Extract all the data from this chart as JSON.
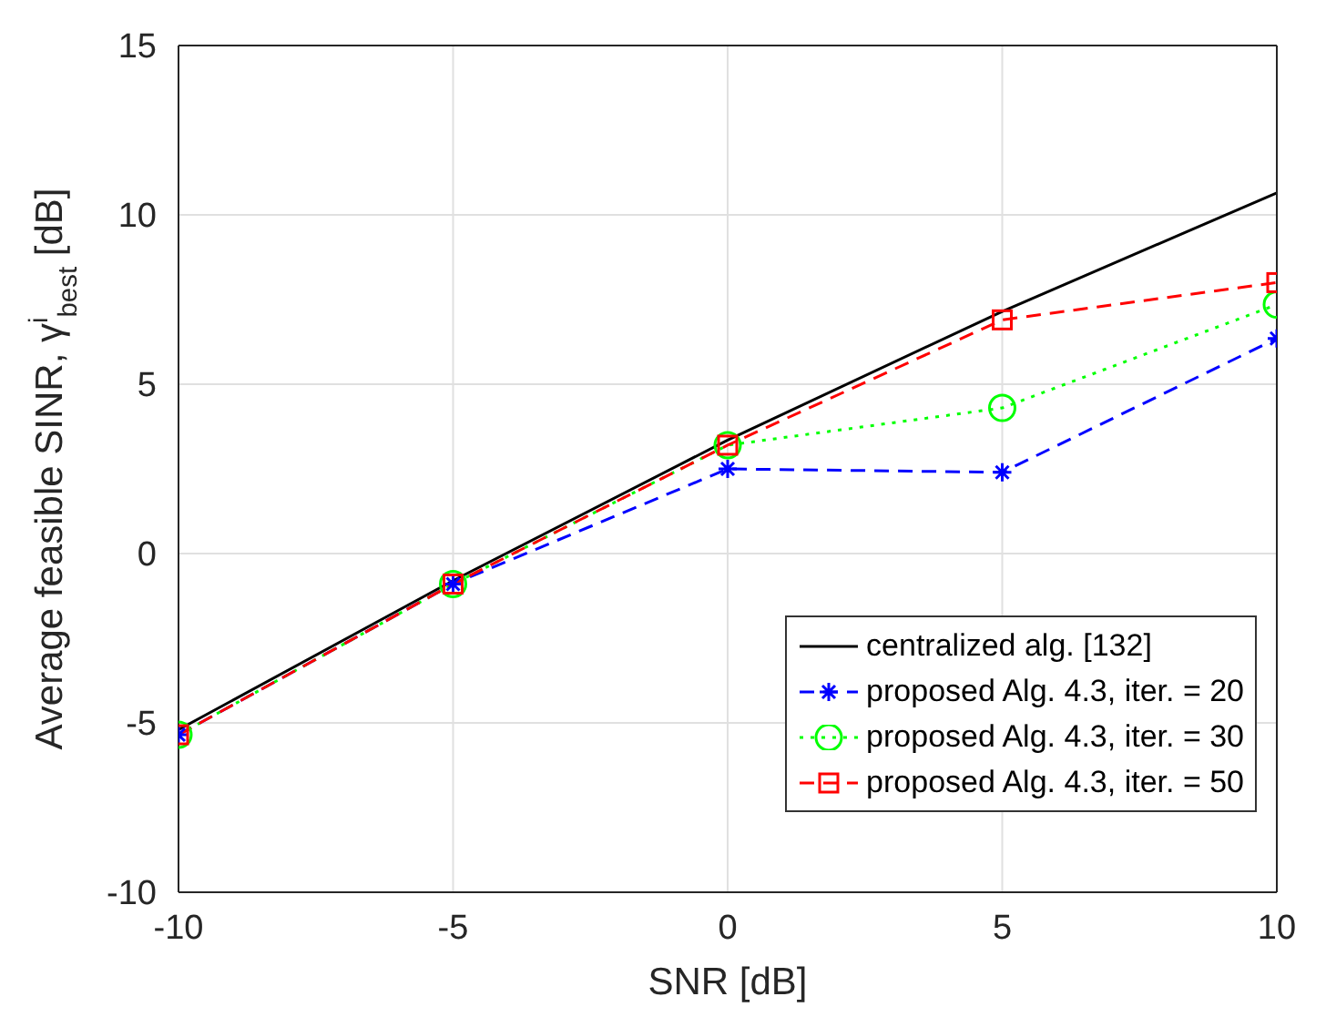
{
  "chart_data": {
    "type": "line",
    "xlabel": "SNR [dB]",
    "ylabel": "Average feasible SINR, γ$^{i}$$_{best}$ [dB]",
    "x": [
      -10,
      -5,
      0,
      5,
      10
    ],
    "xlim": [
      -10,
      10
    ],
    "xticks": [
      -10,
      -5,
      0,
      5,
      10
    ],
    "ylim": [
      -10,
      15
    ],
    "yticks": [
      -10,
      -5,
      0,
      5,
      10,
      15
    ],
    "grid": true,
    "legend": "bottom right",
    "series": [
      {
        "name": "centralized alg. [132]",
        "color": "#000000",
        "values": [
          -5.2,
          -0.8,
          3.35,
          7.15,
          10.65
        ],
        "marker": "none",
        "line_style": "solid"
      },
      {
        "name": "proposed Alg. 4.3, iter. = 20",
        "color": "#0000ff",
        "values": [
          -5.35,
          -0.9,
          2.5,
          2.4,
          6.35
        ],
        "marker": "cross",
        "line_style": "dashed"
      },
      {
        "name": "proposed Alg. 4.3, iter. = 30",
        "color": "#00ff00",
        "values": [
          -5.35,
          -0.9,
          3.2,
          4.3,
          7.35
        ],
        "marker": "circle",
        "line_style": "dotted"
      },
      {
        "name": "proposed Alg. 4.3, iter. = 50",
        "color": "#ff0000",
        "values": [
          -5.35,
          -0.9,
          3.2,
          6.9,
          8.0
        ],
        "marker": "square",
        "line_style": "dashed"
      }
    ]
  }
}
